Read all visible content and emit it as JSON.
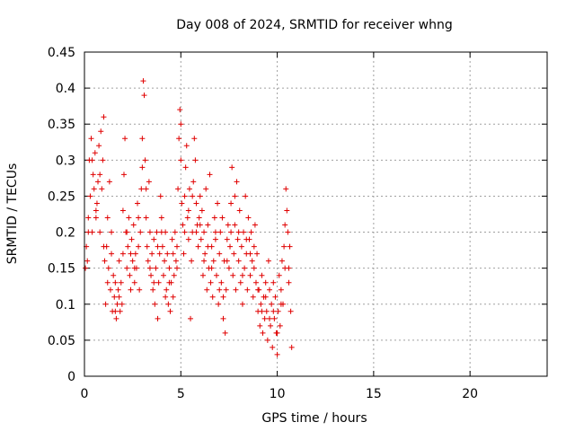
{
  "chart_data": {
    "type": "scatter",
    "title": "Day 008 of 2024, SRMTID for receiver whng",
    "xlabel": "GPS time / hours",
    "ylabel": "SRMTID / TECUs",
    "xlim": [
      0,
      24
    ],
    "ylim": [
      0,
      0.45
    ],
    "xticks": [
      0,
      5,
      10,
      15,
      20
    ],
    "yticks": [
      0,
      0.05,
      0.1,
      0.15,
      0.2,
      0.25,
      0.3,
      0.35,
      0.4,
      0.45
    ],
    "xtick_labels": [
      "0",
      "5",
      "10",
      "15",
      "20"
    ],
    "ytick_labels": [
      "0",
      "0.05",
      "0.1",
      "0.15",
      "0.2",
      "0.25",
      "0.3",
      "0.35",
      "0.4",
      "0.45"
    ],
    "grid": true,
    "marker": "+",
    "color": "#e00000",
    "series": [
      {
        "name": "SRMTID",
        "points": [
          [
            0.05,
            0.15
          ],
          [
            0.1,
            0.18
          ],
          [
            0.15,
            0.16
          ],
          [
            0.2,
            0.22
          ],
          [
            0.25,
            0.3
          ],
          [
            0.3,
            0.25
          ],
          [
            0.35,
            0.33
          ],
          [
            0.4,
            0.2
          ],
          [
            0.45,
            0.28
          ],
          [
            0.5,
            0.26
          ],
          [
            0.55,
            0.31
          ],
          [
            0.6,
            0.22
          ],
          [
            0.65,
            0.24
          ],
          [
            0.7,
            0.27
          ],
          [
            0.75,
            0.32
          ],
          [
            0.8,
            0.2
          ],
          [
            0.85,
            0.34
          ],
          [
            0.9,
            0.26
          ],
          [
            0.95,
            0.3
          ],
          [
            1.0,
            0.36
          ],
          [
            1.05,
            0.16
          ],
          [
            1.1,
            0.1
          ],
          [
            1.15,
            0.18
          ],
          [
            1.2,
            0.22
          ],
          [
            1.25,
            0.15
          ],
          [
            1.3,
            0.27
          ],
          [
            1.35,
            0.12
          ],
          [
            1.4,
            0.17
          ],
          [
            1.45,
            0.09
          ],
          [
            1.5,
            0.14
          ],
          [
            1.55,
            0.11
          ],
          [
            1.6,
            0.13
          ],
          [
            1.65,
            0.08
          ],
          [
            1.7,
            0.1
          ],
          [
            1.75,
            0.12
          ],
          [
            1.8,
            0.16
          ],
          [
            1.85,
            0.09
          ],
          [
            1.9,
            0.13
          ],
          [
            1.95,
            0.1
          ],
          [
            2.0,
            0.17
          ],
          [
            2.05,
            0.28
          ],
          [
            2.1,
            0.33
          ],
          [
            2.15,
            0.2
          ],
          [
            2.2,
            0.15
          ],
          [
            2.25,
            0.18
          ],
          [
            2.3,
            0.22
          ],
          [
            2.35,
            0.14
          ],
          [
            2.4,
            0.12
          ],
          [
            2.45,
            0.19
          ],
          [
            2.5,
            0.16
          ],
          [
            2.55,
            0.21
          ],
          [
            2.6,
            0.13
          ],
          [
            2.65,
            0.17
          ],
          [
            2.7,
            0.15
          ],
          [
            2.75,
            0.24
          ],
          [
            2.8,
            0.18
          ],
          [
            2.85,
            0.12
          ],
          [
            2.9,
            0.2
          ],
          [
            2.95,
            0.26
          ],
          [
            3.0,
            0.33
          ],
          [
            3.05,
            0.41
          ],
          [
            3.1,
            0.39
          ],
          [
            3.15,
            0.3
          ],
          [
            3.2,
            0.22
          ],
          [
            3.25,
            0.18
          ],
          [
            3.3,
            0.16
          ],
          [
            3.35,
            0.27
          ],
          [
            3.4,
            0.2
          ],
          [
            3.45,
            0.14
          ],
          [
            3.5,
            0.17
          ],
          [
            3.55,
            0.12
          ],
          [
            3.6,
            0.19
          ],
          [
            3.65,
            0.1
          ],
          [
            3.7,
            0.15
          ],
          [
            3.75,
            0.2
          ],
          [
            3.8,
            0.08
          ],
          [
            3.85,
            0.13
          ],
          [
            3.9,
            0.17
          ],
          [
            3.95,
            0.25
          ],
          [
            4.0,
            0.22
          ],
          [
            4.05,
            0.18
          ],
          [
            4.1,
            0.14
          ],
          [
            4.15,
            0.16
          ],
          [
            4.2,
            0.2
          ],
          [
            4.25,
            0.12
          ],
          [
            4.3,
            0.17
          ],
          [
            4.35,
            0.1
          ],
          [
            4.4,
            0.15
          ],
          [
            4.45,
            0.09
          ],
          [
            4.5,
            0.13
          ],
          [
            4.55,
            0.19
          ],
          [
            4.6,
            0.11
          ],
          [
            4.65,
            0.14
          ],
          [
            4.7,
            0.2
          ],
          [
            4.75,
            0.16
          ],
          [
            4.8,
            0.18
          ],
          [
            4.85,
            0.26
          ],
          [
            4.9,
            0.33
          ],
          [
            4.95,
            0.37
          ],
          [
            5.0,
            0.3
          ],
          [
            5.05,
            0.24
          ],
          [
            5.1,
            0.21
          ],
          [
            5.15,
            0.17
          ],
          [
            5.2,
            0.25
          ],
          [
            5.25,
            0.29
          ],
          [
            5.3,
            0.32
          ],
          [
            5.35,
            0.22
          ],
          [
            5.4,
            0.19
          ],
          [
            5.45,
            0.26
          ],
          [
            5.5,
            0.08
          ],
          [
            5.55,
            0.16
          ],
          [
            5.6,
            0.2
          ],
          [
            5.65,
            0.27
          ],
          [
            5.7,
            0.33
          ],
          [
            5.75,
            0.3
          ],
          [
            5.8,
            0.24
          ],
          [
            5.85,
            0.21
          ],
          [
            5.9,
            0.18
          ],
          [
            5.95,
            0.22
          ],
          [
            6.0,
            0.25
          ],
          [
            6.05,
            0.19
          ],
          [
            6.1,
            0.23
          ],
          [
            6.15,
            0.14
          ],
          [
            6.2,
            0.2
          ],
          [
            6.25,
            0.17
          ],
          [
            6.3,
            0.26
          ],
          [
            6.35,
            0.12
          ],
          [
            6.4,
            0.21
          ],
          [
            6.45,
            0.15
          ],
          [
            6.5,
            0.28
          ],
          [
            6.55,
            0.13
          ],
          [
            6.6,
            0.18
          ],
          [
            6.65,
            0.11
          ],
          [
            6.7,
            0.16
          ],
          [
            6.75,
            0.22
          ],
          [
            6.8,
            0.19
          ],
          [
            6.85,
            0.14
          ],
          [
            6.9,
            0.24
          ],
          [
            6.95,
            0.1
          ],
          [
            7.0,
            0.17
          ],
          [
            7.05,
            0.2
          ],
          [
            7.1,
            0.13
          ],
          [
            7.15,
            0.22
          ],
          [
            7.2,
            0.08
          ],
          [
            7.25,
            0.16
          ],
          [
            7.3,
            0.06
          ],
          [
            7.35,
            0.12
          ],
          [
            7.4,
            0.19
          ],
          [
            7.45,
            0.21
          ],
          [
            7.5,
            0.15
          ],
          [
            7.55,
            0.18
          ],
          [
            7.6,
            0.24
          ],
          [
            7.65,
            0.29
          ],
          [
            7.7,
            0.14
          ],
          [
            7.75,
            0.17
          ],
          [
            7.8,
            0.21
          ],
          [
            7.85,
            0.12
          ],
          [
            7.9,
            0.27
          ],
          [
            7.95,
            0.19
          ],
          [
            8.0,
            0.16
          ],
          [
            8.05,
            0.23
          ],
          [
            8.1,
            0.13
          ],
          [
            8.15,
            0.18
          ],
          [
            8.2,
            0.1
          ],
          [
            8.25,
            0.2
          ],
          [
            8.3,
            0.15
          ],
          [
            8.35,
            0.25
          ],
          [
            8.4,
            0.17
          ],
          [
            8.45,
            0.12
          ],
          [
            8.5,
            0.22
          ],
          [
            8.55,
            0.19
          ],
          [
            8.6,
            0.14
          ],
          [
            8.65,
            0.2
          ],
          [
            8.7,
            0.16
          ],
          [
            8.75,
            0.11
          ],
          [
            8.8,
            0.18
          ],
          [
            8.85,
            0.21
          ],
          [
            8.9,
            0.13
          ],
          [
            8.95,
            0.17
          ],
          [
            9.0,
            0.09
          ],
          [
            9.05,
            0.12
          ],
          [
            9.1,
            0.07
          ],
          [
            9.15,
            0.1
          ],
          [
            9.2,
            0.14
          ],
          [
            9.25,
            0.06
          ],
          [
            9.3,
            0.11
          ],
          [
            9.35,
            0.08
          ],
          [
            9.4,
            0.13
          ],
          [
            9.45,
            0.09
          ],
          [
            9.5,
            0.05
          ],
          [
            9.55,
            0.16
          ],
          [
            9.6,
            0.12
          ],
          [
            9.65,
            0.07
          ],
          [
            9.7,
            0.1
          ],
          [
            9.75,
            0.04
          ],
          [
            9.8,
            0.13
          ],
          [
            9.85,
            0.08
          ],
          [
            9.9,
            0.11
          ],
          [
            9.95,
            0.06
          ],
          [
            10.0,
            0.03
          ],
          [
            10.05,
            0.09
          ],
          [
            10.1,
            0.14
          ],
          [
            10.15,
            0.07
          ],
          [
            10.2,
            0.12
          ],
          [
            10.25,
            0.16
          ],
          [
            10.3,
            0.1
          ],
          [
            10.35,
            0.18
          ],
          [
            10.4,
            0.15
          ],
          [
            10.45,
            0.26
          ],
          [
            10.5,
            0.23
          ],
          [
            10.55,
            0.2
          ],
          [
            10.6,
            0.13
          ],
          [
            10.65,
            0.18
          ],
          [
            10.7,
            0.09
          ],
          [
            10.75,
            0.04
          ],
          [
            0.2,
            0.2
          ],
          [
            0.4,
            0.3
          ],
          [
            0.6,
            0.23
          ],
          [
            0.8,
            0.28
          ],
          [
            1.0,
            0.18
          ],
          [
            1.2,
            0.13
          ],
          [
            1.4,
            0.2
          ],
          [
            1.6,
            0.09
          ],
          [
            1.8,
            0.11
          ],
          [
            2.0,
            0.23
          ],
          [
            2.2,
            0.2
          ],
          [
            2.4,
            0.17
          ],
          [
            2.6,
            0.15
          ],
          [
            2.8,
            0.22
          ],
          [
            3.0,
            0.29
          ],
          [
            3.2,
            0.26
          ],
          [
            3.4,
            0.15
          ],
          [
            3.6,
            0.13
          ],
          [
            3.8,
            0.18
          ],
          [
            4.0,
            0.2
          ],
          [
            4.2,
            0.11
          ],
          [
            4.4,
            0.13
          ],
          [
            4.6,
            0.17
          ],
          [
            4.8,
            0.15
          ],
          [
            5.0,
            0.35
          ],
          [
            5.2,
            0.2
          ],
          [
            5.4,
            0.23
          ],
          [
            5.6,
            0.25
          ],
          [
            5.8,
            0.2
          ],
          [
            6.0,
            0.21
          ],
          [
            6.2,
            0.16
          ],
          [
            6.4,
            0.18
          ],
          [
            6.6,
            0.15
          ],
          [
            6.8,
            0.2
          ],
          [
            7.0,
            0.12
          ],
          [
            7.2,
            0.11
          ],
          [
            7.4,
            0.16
          ],
          [
            7.6,
            0.2
          ],
          [
            7.8,
            0.25
          ],
          [
            8.0,
            0.2
          ],
          [
            8.2,
            0.14
          ],
          [
            8.4,
            0.19
          ],
          [
            8.6,
            0.17
          ],
          [
            8.8,
            0.15
          ],
          [
            9.0,
            0.12
          ],
          [
            9.2,
            0.09
          ],
          [
            9.4,
            0.11
          ],
          [
            9.6,
            0.08
          ],
          [
            9.8,
            0.09
          ],
          [
            10.0,
            0.06
          ],
          [
            10.2,
            0.1
          ],
          [
            10.4,
            0.21
          ],
          [
            10.6,
            0.15
          ]
        ]
      }
    ]
  }
}
